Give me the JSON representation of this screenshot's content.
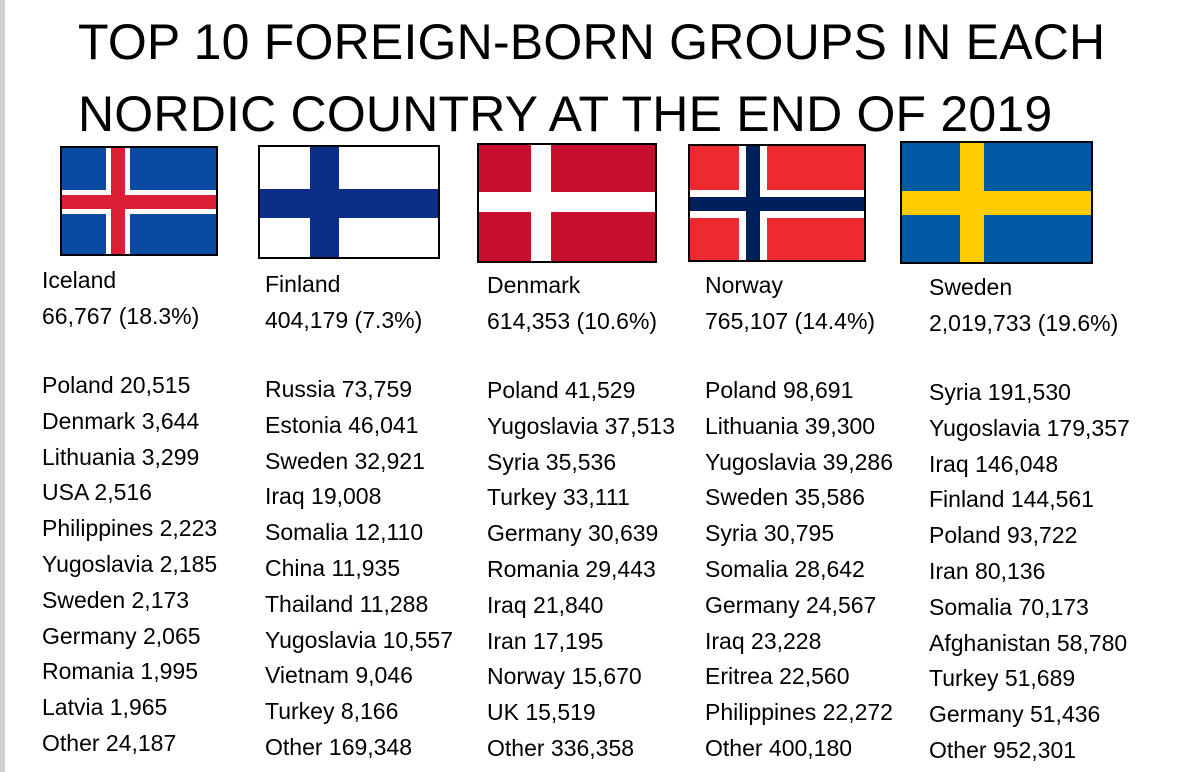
{
  "title": {
    "line1": "TOP 10 FOREIGN-BORN GROUPS IN EACH",
    "line2": "NORDIC COUNTRY AT THE END OF 2019"
  },
  "colors": {
    "iceland_blue": "#0b4aa2",
    "iceland_red": "#dc1e35",
    "finland_blue": "#0b2e86",
    "denmark_red": "#c8102e",
    "norway_red": "#ec2a2f",
    "norway_blue": "#00205b",
    "sweden_blue": "#005ba5",
    "sweden_yellow": "#fecc00"
  },
  "countries": [
    {
      "name": "Iceland",
      "flag": "iceland-flag",
      "total": "66,767 (18.3%)",
      "items": [
        "Poland 20,515",
        "Denmark 3,644",
        "Lithuania 3,299",
        "USA 2,516",
        "Philippines 2,223",
        "Yugoslavia 2,185",
        "Sweden 2,173",
        "Germany 2,065",
        "Romania 1,995",
        "Latvia 1,965",
        "Other 24,187"
      ]
    },
    {
      "name": "Finland",
      "flag": "finland-flag",
      "total": "404,179 (7.3%)",
      "items": [
        "Russia 73,759",
        "Estonia 46,041",
        "Sweden 32,921",
        "Iraq 19,008",
        "Somalia 12,110",
        "China 11,935",
        "Thailand 11,288",
        "Yugoslavia 10,557",
        "Vietnam 9,046",
        "Turkey 8,166",
        "Other 169,348"
      ]
    },
    {
      "name": "Denmark",
      "flag": "denmark-flag",
      "total": "614,353 (10.6%)",
      "items": [
        "Poland 41,529",
        "Yugoslavia 37,513",
        "Syria 35,536",
        "Turkey 33,111",
        "Germany 30,639",
        "Romania 29,443",
        "Iraq 21,840",
        "Iran 17,195",
        "Norway 15,670",
        "UK 15,519",
        "Other 336,358"
      ]
    },
    {
      "name": "Norway",
      "flag": "norway-flag",
      "total": "765,107 (14.4%)",
      "items": [
        "Poland 98,691",
        "Lithuania 39,300",
        "Yugoslavia 39,286",
        "Sweden 35,586",
        "Syria 30,795",
        "Somalia 28,642",
        "Germany 24,567",
        "Iraq 23,228",
        "Eritrea 22,560",
        "Philippines 22,272",
        "Other 400,180"
      ]
    },
    {
      "name": "Sweden",
      "flag": "sweden-flag",
      "total": "2,019,733 (19.6%)",
      "items": [
        "Syria 191,530",
        "Yugoslavia 179,357",
        "Iraq 146,048",
        "Finland 144,561",
        "Poland 93,722",
        "Iran 80,136",
        "Somalia 70,173",
        "Afghanistan 58,780",
        "Turkey 51,689",
        "Germany 51,436",
        "Other 952,301"
      ]
    }
  ]
}
